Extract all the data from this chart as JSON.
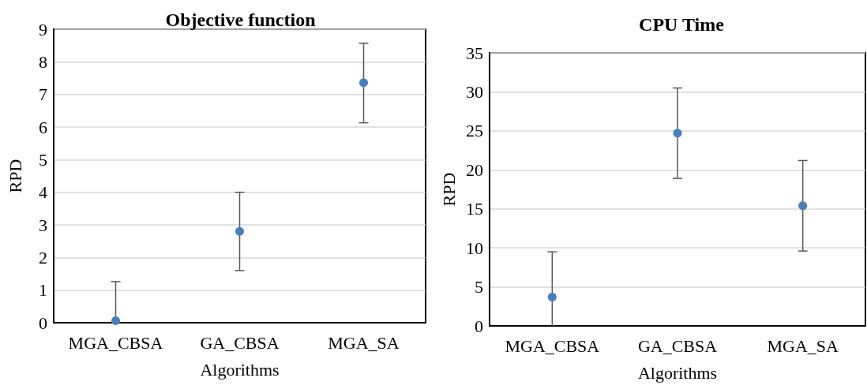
{
  "chart_data": [
    {
      "type": "scatter",
      "title": "Objective function",
      "xlabel": "Algorithms",
      "ylabel": "RPD",
      "categories": [
        "MGA_CBSA",
        "GA_CBSA",
        "MGA_SA"
      ],
      "series": [
        {
          "color": "#4a7ebb",
          "values": [
            0.06,
            2.8,
            7.36
          ],
          "errors": [
            [
              0,
              1.26
            ],
            [
              1.6,
              4.0
            ],
            [
              6.13,
              8.57
            ]
          ]
        }
      ],
      "ylim": [
        0,
        9
      ],
      "yticks": [
        0,
        1,
        2,
        3,
        4,
        5,
        6,
        7,
        8,
        9
      ],
      "grid": "y",
      "marker": "circle"
    },
    {
      "type": "scatter",
      "title": "CPU Time",
      "xlabel": "Algorithms",
      "ylabel": "RPD",
      "categories": [
        "MGA_CBSA",
        "GA_CBSA",
        "MGA_SA"
      ],
      "series": [
        {
          "color": "#4a7ebb",
          "values": [
            3.7,
            24.7,
            15.4
          ],
          "errors": [
            [
              0,
              9.5
            ],
            [
              18.9,
              30.5
            ],
            [
              9.6,
              21.2
            ]
          ]
        }
      ],
      "ylim": [
        0,
        35
      ],
      "yticks": [
        0,
        5,
        10,
        15,
        20,
        25,
        30,
        35
      ],
      "grid": "y",
      "marker": "circle"
    }
  ]
}
